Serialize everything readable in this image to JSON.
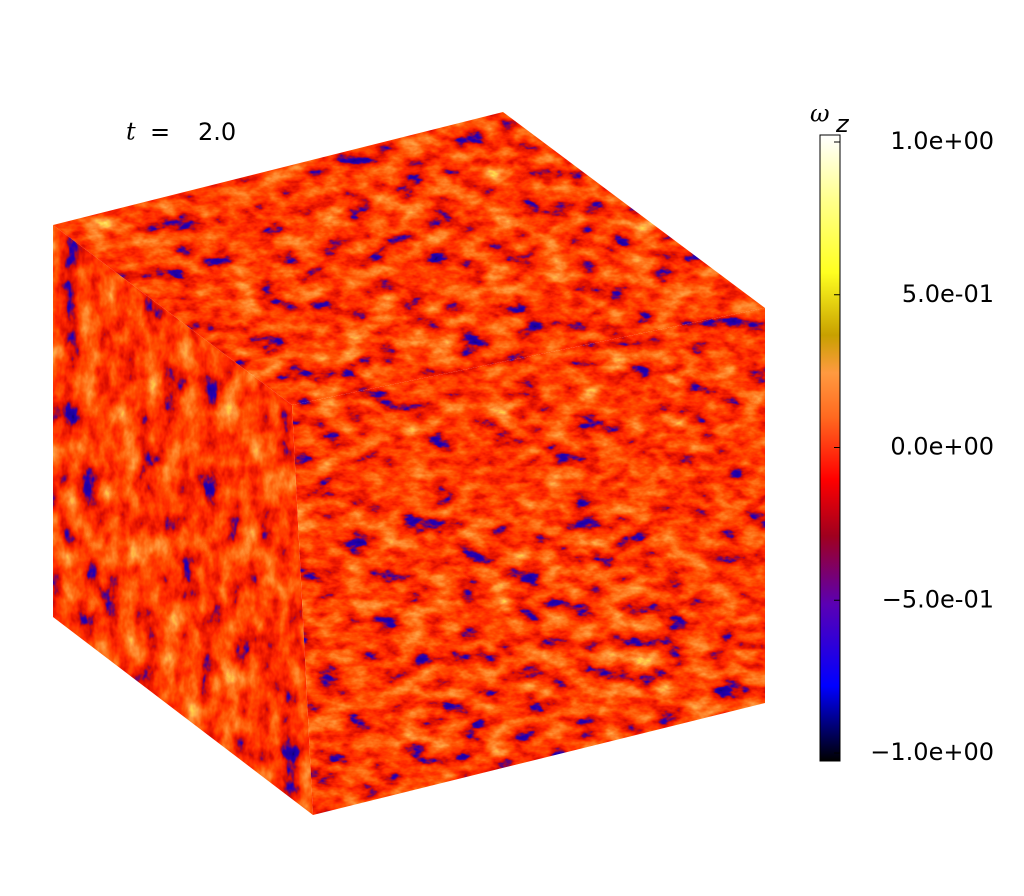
{
  "annotation": {
    "symbol": "t",
    "equals": "=",
    "value": "2.0"
  },
  "colorbar": {
    "label": "ω",
    "subscript": "z",
    "lim": [
      -1,
      1
    ],
    "ticks": [
      {
        "value": 1,
        "label": "1.0e+00"
      },
      {
        "value": 0.5,
        "label": "5.0e-01"
      },
      {
        "value": 0,
        "label": "0.0e+00"
      },
      {
        "value": -0.5,
        "label": "−5.0e-01"
      },
      {
        "value": -1,
        "label": "−1.0e+00"
      }
    ]
  }
}
